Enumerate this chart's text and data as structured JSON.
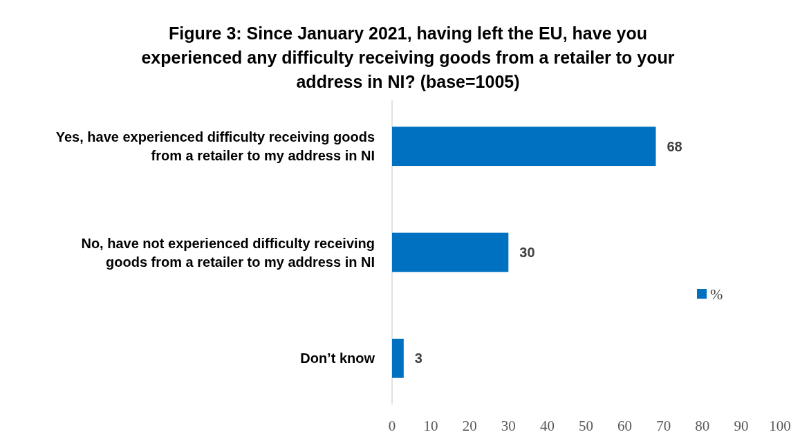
{
  "chart_data": {
    "type": "bar",
    "orientation": "horizontal",
    "title": "Figure 3: Since January 2021, having left the EU, have you experienced any difficulty receiving goods from a retailer to your address in NI? (base=1005)",
    "categories": [
      "Yes, have experienced difficulty receiving goods from a retailer to my address in NI",
      "No, have not experienced difficulty receiving goods from a retailer to my address in NI",
      "Don’t know"
    ],
    "series": [
      {
        "name": "%",
        "color": "#0070c0",
        "values": [
          68,
          30,
          3
        ]
      }
    ],
    "xlim": [
      0,
      100
    ],
    "xticks": [
      0,
      10,
      20,
      30,
      40,
      50,
      60,
      70,
      80,
      90,
      100
    ],
    "data_labels": true,
    "legend": "right",
    "grid": false
  }
}
